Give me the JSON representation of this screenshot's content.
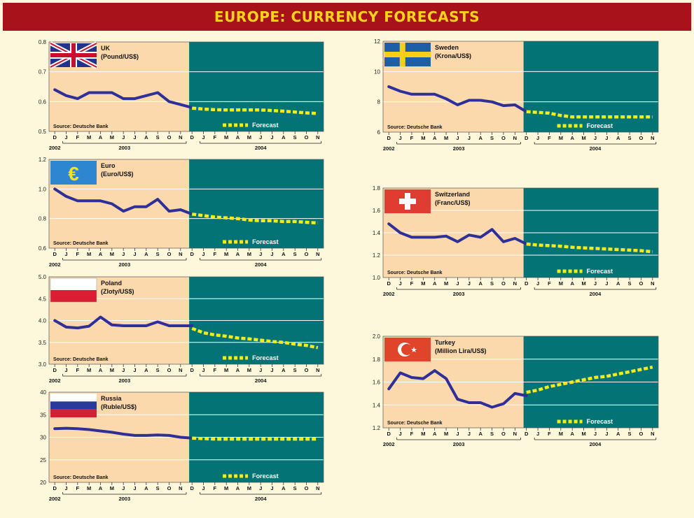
{
  "title": "EUROPE: CURRENCY FORECASTS",
  "colors": {
    "banner": "#a8121a",
    "title_text": "#ffd21c",
    "history_bg": "#fcd9ad",
    "forecast_bg": "#047375",
    "history_line": "#2e2f97",
    "forecast_line": "#f2ec1e",
    "grid": "#ffffff"
  },
  "common": {
    "months": [
      "D",
      "J",
      "F",
      "M",
      "A",
      "M",
      "J",
      "J",
      "A",
      "S",
      "O",
      "N",
      "D",
      "J",
      "F",
      "M",
      "A",
      "M",
      "J",
      "J",
      "A",
      "S",
      "O",
      "N"
    ],
    "year_labels": [
      "2002",
      "2003",
      "2004"
    ],
    "source": "Source: Deutsche Bank",
    "forecast_label": "Forecast"
  },
  "chart_data": [
    {
      "type": "line",
      "country": "UK",
      "unit": "(Pound/US$)",
      "flag": "uk-flag",
      "ylim": [
        0.5,
        0.8
      ],
      "yticks": [
        "0.8",
        "0.7",
        "0.6",
        "0.5"
      ],
      "series": [
        {
          "role": "history",
          "x": [
            0,
            1,
            2,
            3,
            4,
            5,
            6,
            7,
            8,
            9,
            10,
            11,
            12
          ],
          "values": [
            0.64,
            0.62,
            0.61,
            0.63,
            0.63,
            0.63,
            0.61,
            0.61,
            0.62,
            0.63,
            0.6,
            0.59,
            0.58
          ]
        },
        {
          "role": "forecast",
          "x": [
            12,
            13,
            14,
            15,
            16,
            17,
            18,
            19,
            20,
            21,
            22,
            23
          ],
          "values": [
            0.578,
            0.575,
            0.573,
            0.572,
            0.572,
            0.572,
            0.572,
            0.57,
            0.568,
            0.565,
            0.562,
            0.56
          ]
        }
      ]
    },
    {
      "type": "line",
      "country": "Euro",
      "unit": "(Euro/US$)",
      "flag": "euro-flag",
      "ylim": [
        0.6,
        1.2
      ],
      "yticks": [
        "1.2",
        "1.0",
        "0.8",
        "0.6"
      ],
      "series": [
        {
          "role": "history",
          "x": [
            0,
            1,
            2,
            3,
            4,
            5,
            6,
            7,
            8,
            9,
            10,
            11,
            12
          ],
          "values": [
            1.0,
            0.95,
            0.92,
            0.92,
            0.92,
            0.9,
            0.85,
            0.88,
            0.88,
            0.93,
            0.85,
            0.86,
            0.83
          ]
        },
        {
          "role": "forecast",
          "x": [
            12,
            13,
            14,
            15,
            16,
            17,
            18,
            19,
            20,
            21,
            22,
            23
          ],
          "values": [
            0.83,
            0.82,
            0.81,
            0.805,
            0.8,
            0.79,
            0.785,
            0.785,
            0.78,
            0.78,
            0.775,
            0.77
          ]
        }
      ]
    },
    {
      "type": "line",
      "country": "Poland",
      "unit": "(Zloty/US$)",
      "flag": "poland-flag",
      "ylim": [
        3.0,
        5.0
      ],
      "yticks": [
        "5.0",
        "4.5",
        "4.0",
        "3.5",
        "3.0"
      ],
      "series": [
        {
          "role": "history",
          "x": [
            0,
            1,
            2,
            3,
            4,
            5,
            6,
            7,
            8,
            9,
            10,
            11,
            12
          ],
          "values": [
            4.0,
            3.85,
            3.83,
            3.87,
            4.08,
            3.9,
            3.88,
            3.88,
            3.88,
            3.97,
            3.88,
            3.88,
            3.88
          ]
        },
        {
          "role": "forecast",
          "x": [
            12,
            13,
            14,
            15,
            16,
            17,
            18,
            19,
            20,
            21,
            22,
            23
          ],
          "values": [
            3.82,
            3.72,
            3.67,
            3.64,
            3.6,
            3.58,
            3.55,
            3.52,
            3.5,
            3.46,
            3.43,
            3.38
          ]
        }
      ]
    },
    {
      "type": "line",
      "country": "Russia",
      "unit": "(Ruble/US$)",
      "flag": "russia-flag",
      "ylim": [
        20,
        40
      ],
      "yticks": [
        "40",
        "35",
        "30",
        "25",
        "20"
      ],
      "series": [
        {
          "role": "history",
          "x": [
            0,
            1,
            2,
            3,
            4,
            5,
            6,
            7,
            8,
            9,
            10,
            11,
            12
          ],
          "values": [
            31.9,
            32.0,
            31.9,
            31.7,
            31.4,
            31.1,
            30.7,
            30.4,
            30.4,
            30.5,
            30.4,
            30.0,
            29.8
          ]
        },
        {
          "role": "forecast",
          "x": [
            12,
            13,
            14,
            15,
            16,
            17,
            18,
            19,
            20,
            21,
            22,
            23
          ],
          "values": [
            29.8,
            29.7,
            29.6,
            29.6,
            29.6,
            29.6,
            29.6,
            29.6,
            29.6,
            29.6,
            29.6,
            29.6
          ]
        }
      ]
    },
    {
      "type": "line",
      "country": "Sweden",
      "unit": "(Krona/US$)",
      "flag": "sweden-flag",
      "ylim": [
        6,
        12
      ],
      "yticks": [
        "12",
        "10",
        "8",
        "6"
      ],
      "series": [
        {
          "role": "history",
          "x": [
            0,
            1,
            2,
            3,
            4,
            5,
            6,
            7,
            8,
            9,
            10,
            11,
            12
          ],
          "values": [
            9.0,
            8.7,
            8.5,
            8.5,
            8.5,
            8.2,
            7.8,
            8.1,
            8.1,
            8.0,
            7.75,
            7.8,
            7.35
          ]
        },
        {
          "role": "forecast",
          "x": [
            12,
            13,
            14,
            15,
            16,
            17,
            18,
            19,
            20,
            21,
            22,
            23
          ],
          "values": [
            7.35,
            7.3,
            7.25,
            7.1,
            7.0,
            7.0,
            7.0,
            7.0,
            7.0,
            7.0,
            7.0,
            7.0
          ]
        }
      ]
    },
    {
      "type": "line",
      "country": "Switzerland",
      "unit": "(Franc/US$)",
      "flag": "switzerland-flag",
      "ylim": [
        1.0,
        1.8
      ],
      "yticks": [
        "1.8",
        "1.6",
        "1.4",
        "1.2",
        "1.0"
      ],
      "series": [
        {
          "role": "history",
          "x": [
            0,
            1,
            2,
            3,
            4,
            5,
            6,
            7,
            8,
            9,
            10,
            11,
            12
          ],
          "values": [
            1.48,
            1.4,
            1.36,
            1.36,
            1.36,
            1.37,
            1.32,
            1.38,
            1.36,
            1.43,
            1.32,
            1.35,
            1.3
          ]
        },
        {
          "role": "forecast",
          "x": [
            12,
            13,
            14,
            15,
            16,
            17,
            18,
            19,
            20,
            21,
            22,
            23
          ],
          "values": [
            1.3,
            1.29,
            1.285,
            1.28,
            1.27,
            1.265,
            1.26,
            1.255,
            1.25,
            1.245,
            1.24,
            1.23
          ]
        }
      ]
    },
    {
      "type": "line",
      "country": "Turkey",
      "unit": "(Million Lira/US$)",
      "flag": "turkey-flag",
      "ylim": [
        1.2,
        2.0
      ],
      "yticks": [
        "2.0",
        "1.8",
        "1.6",
        "1.4",
        "1.2"
      ],
      "series": [
        {
          "role": "history",
          "x": [
            0,
            1,
            2,
            3,
            4,
            5,
            6,
            7,
            8,
            9,
            10,
            11,
            12
          ],
          "values": [
            1.54,
            1.68,
            1.64,
            1.63,
            1.7,
            1.63,
            1.45,
            1.42,
            1.42,
            1.38,
            1.41,
            1.5,
            1.48
          ]
        },
        {
          "role": "forecast",
          "x": [
            12,
            13,
            14,
            15,
            16,
            17,
            18,
            19,
            20,
            21,
            22,
            23
          ],
          "values": [
            1.51,
            1.53,
            1.56,
            1.58,
            1.6,
            1.62,
            1.64,
            1.65,
            1.67,
            1.69,
            1.71,
            1.73
          ]
        }
      ]
    }
  ]
}
